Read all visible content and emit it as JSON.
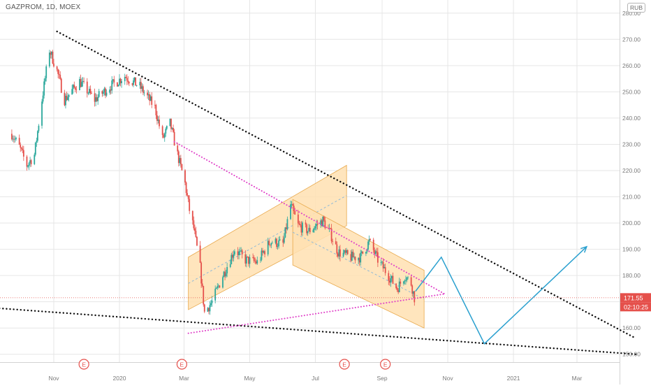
{
  "header": {
    "symbol": "GAZPROM",
    "interval": "1D",
    "exchange": "MOEX",
    "currency_badge": "RUB"
  },
  "price_labels": {
    "last_price": "171.55",
    "countdown": "02:10:25"
  },
  "colors": {
    "up": "#2ba89c",
    "down": "#e5504b",
    "channel_fill": "#ffe0b2",
    "trend_dotted": "#111111",
    "wedge_dotted": "#e040c8",
    "projection": "#2aa0cf",
    "price_line": "#e5504b",
    "grid": "#e6e6e6",
    "earnings_marker": "#e5504b"
  },
  "earnings_markers": [
    "E",
    "E",
    "E",
    "E"
  ],
  "chart_data": {
    "type": "candlestick",
    "title": "",
    "xlabel": "",
    "ylabel": "",
    "ylim": [
      147,
      285
    ],
    "y_ticks": [
      "150.00",
      "160.00",
      "170.00",
      "180.00",
      "190.00",
      "200.00",
      "210.00",
      "220.00",
      "230.00",
      "240.00",
      "250.00",
      "260.00",
      "270.00",
      "280.00"
    ],
    "x_ticks": [
      "Nov",
      "2020",
      "Mar",
      "May",
      "Jul",
      "Sep",
      "Nov",
      "2021",
      "Mar"
    ],
    "series": [
      {
        "type": "close_path",
        "points": [
          [
            "2019-09-23",
            234
          ],
          [
            "2019-09-30",
            229
          ],
          [
            "2019-10-07",
            222
          ],
          [
            "2019-10-14",
            226
          ],
          [
            "2019-10-21",
            247
          ],
          [
            "2019-10-28",
            266
          ],
          [
            "2019-11-04",
            258
          ],
          [
            "2019-11-11",
            247
          ],
          [
            "2019-11-25",
            254
          ],
          [
            "2019-12-09",
            247
          ],
          [
            "2019-12-23",
            252
          ],
          [
            "2020-01-06",
            256
          ],
          [
            "2020-01-20",
            252
          ],
          [
            "2020-02-03",
            244
          ],
          [
            "2020-02-10",
            232
          ],
          [
            "2020-02-17",
            238
          ],
          [
            "2020-02-24",
            226
          ],
          [
            "2020-03-02",
            215
          ],
          [
            "2020-03-06",
            205
          ],
          [
            "2020-03-10",
            198
          ],
          [
            "2020-03-16",
            183
          ],
          [
            "2020-03-20",
            166
          ],
          [
            "2020-03-27",
            170
          ],
          [
            "2020-04-06",
            180
          ],
          [
            "2020-04-17",
            190
          ],
          [
            "2020-04-27",
            186
          ],
          [
            "2020-05-08",
            185
          ],
          [
            "2020-05-20",
            193
          ],
          [
            "2020-06-01",
            192
          ],
          [
            "2020-06-08",
            207
          ],
          [
            "2020-06-15",
            199
          ],
          [
            "2020-06-25",
            197
          ],
          [
            "2020-07-08",
            201
          ],
          [
            "2020-07-15",
            196
          ],
          [
            "2020-07-22",
            189
          ],
          [
            "2020-08-03",
            187
          ],
          [
            "2020-08-12",
            187
          ],
          [
            "2020-08-20",
            193
          ],
          [
            "2020-08-28",
            186
          ],
          [
            "2020-09-07",
            180
          ],
          [
            "2020-09-15",
            175
          ],
          [
            "2020-09-22",
            180
          ],
          [
            "2020-09-28",
            177
          ],
          [
            "2020-10-01",
            171.55
          ]
        ]
      }
    ],
    "drawings": {
      "upper_trendline": [
        [
          "2019-11-04",
          273
        ],
        [
          "2021-04-25",
          156
        ]
      ],
      "lower_trendline": [
        [
          "2019-08-26",
          168
        ],
        [
          "2021-04-25",
          150
        ]
      ],
      "wedge_upper": [
        [
          "2020-02-21",
          231
        ],
        [
          "2020-10-29",
          173
        ]
      ],
      "wedge_lower": [
        [
          "2020-03-05",
          158
        ],
        [
          "2020-10-29",
          173
        ]
      ],
      "ascending_channel": {
        "lower": [
          [
            "2020-03-05",
            167
          ],
          [
            "2020-07-30",
            199
          ]
        ],
        "upper": [
          [
            "2020-03-05",
            187
          ],
          [
            "2020-07-30",
            222
          ]
        ]
      },
      "descending_channel": {
        "lower": [
          [
            "2020-06-10",
            184
          ],
          [
            "2020-10-10",
            160
          ]
        ],
        "upper": [
          [
            "2020-06-10",
            209
          ],
          [
            "2020-10-10",
            182
          ]
        ]
      },
      "projection": [
        [
          "2020-10-02",
          174
        ],
        [
          "2020-10-26",
          187
        ],
        [
          "2020-12-05",
          154
        ],
        [
          "2021-03-10",
          191
        ]
      ]
    }
  }
}
